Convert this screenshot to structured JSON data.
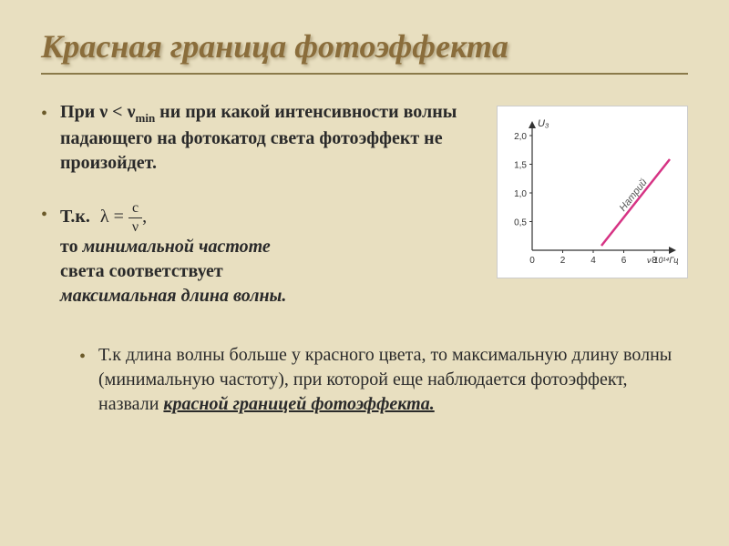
{
  "title": "Красная граница фотоэффекта",
  "bullet1": {
    "pre": "При ",
    "nu": "ν",
    "lt": " < ",
    "nu2": "ν",
    "min": "min",
    "rest": " ни при какой интенсивности волны падающего на фотокатод света фотоэффект не произойдет."
  },
  "bullet2": {
    "tk": "Т.к.",
    "lambda": "λ",
    "eq": " = ",
    "num": "c",
    "den": "ν",
    "comma": ",",
    "line2a": "то ",
    "line2b": "минимальной частоте",
    "line3a": "света соответствует",
    "line4": "максимальная длина волны."
  },
  "bullet3": {
    "a": "Т.к длина волны больше у красного цвета, то максимальную длину волны (минимальную частоту), при которой еще наблюдается фотоэффект, назвали ",
    "b": "красной границей фотоэффекта."
  },
  "chart": {
    "ylabel": "U₃",
    "yticks": [
      "2,0",
      "1,5",
      "1,0",
      "0,5"
    ],
    "xticks": [
      "0",
      "2",
      "4",
      "6",
      "8"
    ],
    "xlabel": "ν·10¹⁴Гц",
    "series_label": "Натрий",
    "series_color": "#d63384",
    "line_x1": 110,
    "line_y1": 145,
    "line_x2": 185,
    "line_y2": 50,
    "axis_color": "#333333",
    "tick_color": "#333333",
    "label_fontsize": 11,
    "tick_fontsize": 10
  }
}
